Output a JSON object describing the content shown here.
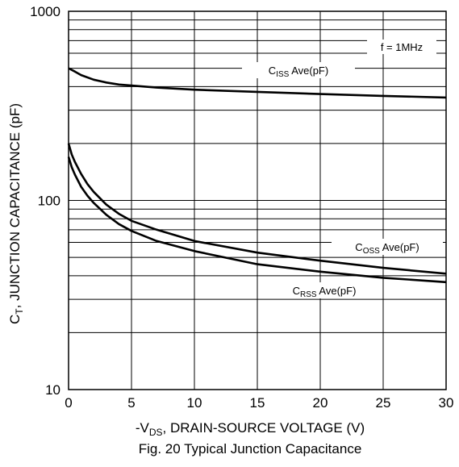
{
  "chart_data": {
    "type": "line",
    "title": "Fig. 20 Typical Junction Capacitance",
    "xlabel": {
      "prefix": "-V",
      "sub": "DS",
      "suffix": ", DRAIN-SOURCE VOLTAGE (V)"
    },
    "ylabel": {
      "prefix": "C",
      "sub": "T",
      "suffix": ", JUNCTION CAPACITANCE (pF)"
    },
    "xlim": [
      0,
      30
    ],
    "ylim": [
      10,
      1000
    ],
    "yscale": "log",
    "grid": true,
    "x_ticks": [
      "0",
      "5",
      "10",
      "15",
      "20",
      "25",
      "30"
    ],
    "y_ticks": [
      "10",
      "100",
      "1000"
    ],
    "series": [
      {
        "name": "CISS Ave(pF)",
        "label": {
          "prefix": "C",
          "sub": "ISS",
          "suffix": " Ave(pF)"
        },
        "x": [
          0,
          0.5,
          1,
          2,
          3,
          4,
          5,
          7,
          10,
          15,
          20,
          25,
          30
        ],
        "y": [
          500,
          480,
          460,
          435,
          420,
          410,
          405,
          395,
          385,
          375,
          365,
          357,
          350
        ]
      },
      {
        "name": "COSS Ave(pF)",
        "label": {
          "prefix": "C",
          "sub": "OSS",
          "suffix": " Ave(pF)"
        },
        "x": [
          0,
          0.25,
          0.5,
          1,
          1.5,
          2,
          3,
          4,
          5,
          7,
          10,
          15,
          20,
          25,
          30
        ],
        "y": [
          200,
          175,
          160,
          138,
          122,
          111,
          95,
          85,
          78,
          70,
          61,
          53,
          48,
          44,
          41
        ]
      },
      {
        "name": "CRSS Ave(pF)",
        "label": {
          "prefix": "C",
          "sub": "RSS",
          "suffix": " Ave(pF)"
        },
        "x": [
          0,
          0.25,
          0.5,
          1,
          1.5,
          2,
          3,
          4,
          5,
          7,
          10,
          15,
          20,
          25,
          30
        ],
        "y": [
          170,
          150,
          137,
          118,
          106,
          97,
          84,
          75,
          69,
          61,
          54,
          46,
          42,
          39,
          37
        ]
      }
    ],
    "annotation": "f = 1MHz"
  }
}
